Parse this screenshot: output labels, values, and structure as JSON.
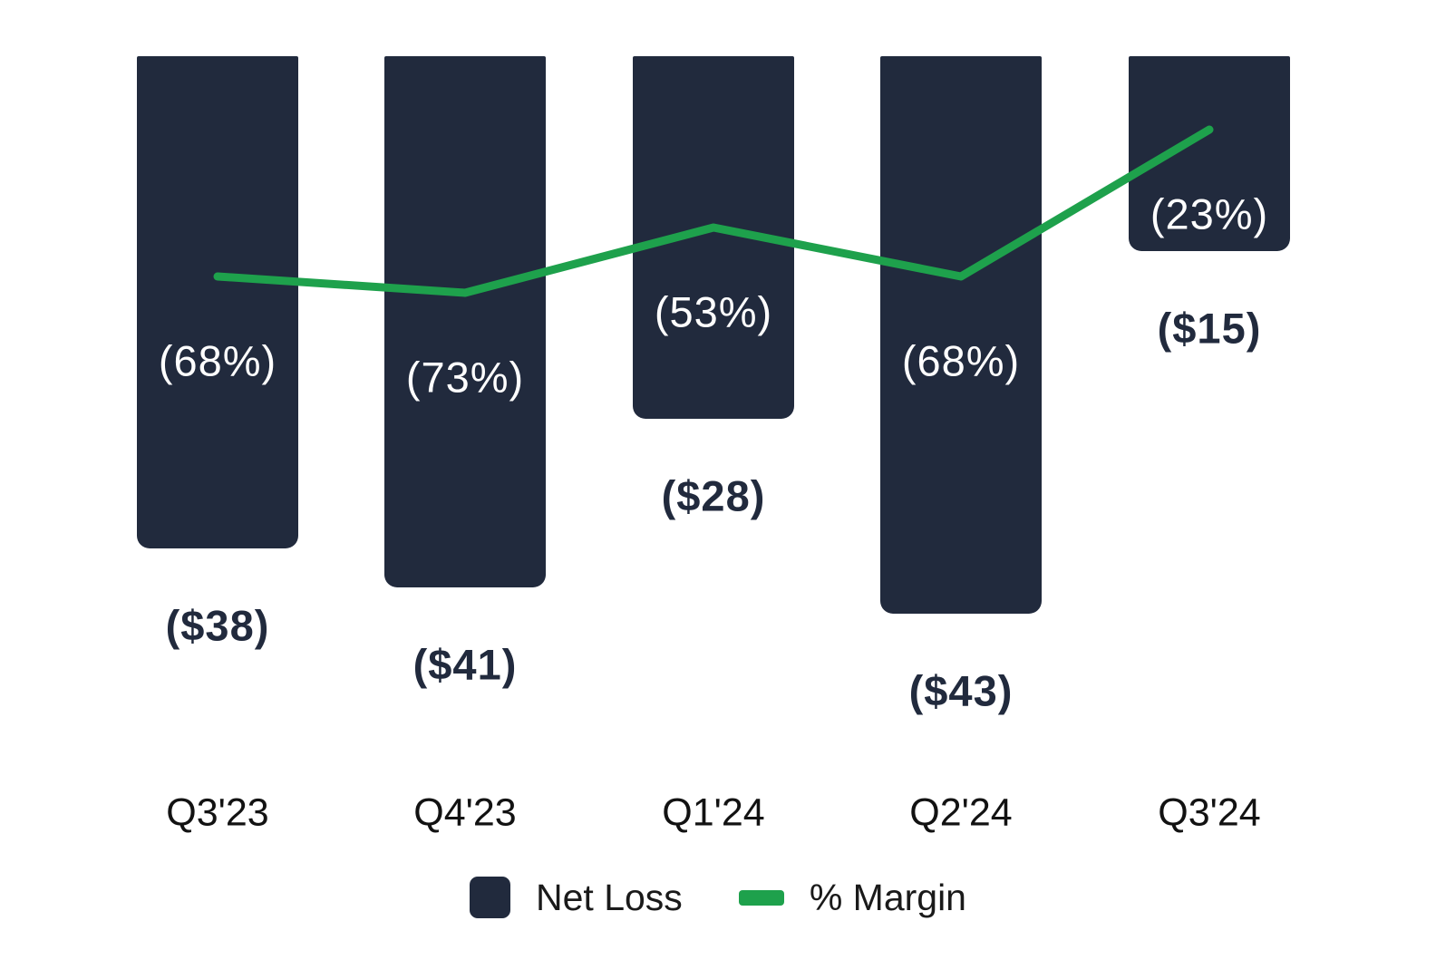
{
  "chart_data": {
    "type": "bar",
    "subtype": "bar-line-combo",
    "title": "",
    "categories": [
      "Q3'23",
      "Q4'23",
      "Q1'24",
      "Q2'24",
      "Q3'24"
    ],
    "series": [
      {
        "name": "Net Loss",
        "type": "bar",
        "values": [
          -38,
          -41,
          -28,
          -43,
          -15
        ],
        "data_labels": [
          "($38)",
          "($41)",
          "($28)",
          "($43)",
          "($15)"
        ],
        "color": "#212a3d"
      },
      {
        "name": "% Margin",
        "type": "line",
        "values": [
          -68,
          -73,
          -53,
          -68,
          -23
        ],
        "data_labels": [
          "(68%)",
          "(73%)",
          "(53%)",
          "(68%)",
          "(23%)"
        ],
        "color": "#1ea14c"
      }
    ],
    "xlabel": "",
    "ylabel": "",
    "axis_ticks_visible": false,
    "grid": false,
    "legend_position": "bottom",
    "background_color": "#ffffff",
    "bar_label_text_color": "#ffffff",
    "value_label_text_color": "#212a3d",
    "x_tick_text_color": "#121212"
  },
  "legend": {
    "items": [
      {
        "label": "Net Loss",
        "swatch": "navy-square"
      },
      {
        "label": "% Margin",
        "swatch": "green-dash"
      }
    ]
  }
}
